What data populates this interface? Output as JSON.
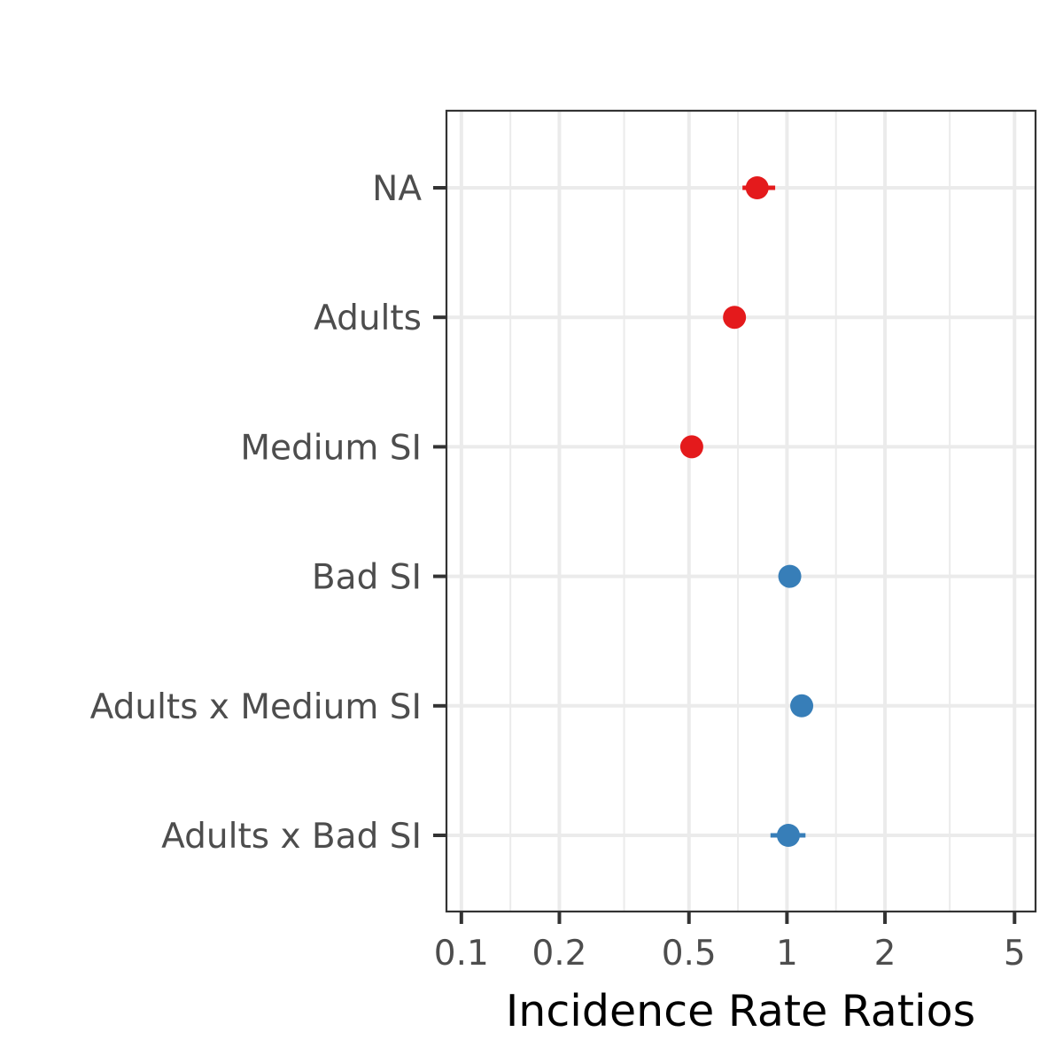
{
  "chart_data": {
    "type": "scatter",
    "title": "",
    "xlabel": "Incidence Rate Ratios",
    "ylabel": "",
    "x_scale": "log",
    "xlim": [
      0.09,
      5.8
    ],
    "x_ticks": [
      0.1,
      0.2,
      0.5,
      1,
      2,
      5
    ],
    "x_tick_labels": [
      "0.1",
      "0.2",
      "0.5",
      "1",
      "2",
      "5"
    ],
    "x_minor_grid": [
      0.1414,
      0.3162,
      0.7071,
      1.4142,
      3.1623
    ],
    "grid": true,
    "legend": "none",
    "colors": {
      "reduced": "#E41A1C",
      "increased": "#377EB8"
    },
    "categories": [
      "NA",
      "Adults",
      "Medium SI",
      "Bad SI",
      "Adults x Medium SI",
      "Adults x Bad SI"
    ],
    "points": [
      {
        "label": "NA",
        "estimate": 0.81,
        "ci_low": 0.73,
        "ci_high": 0.92,
        "color": "#E41A1C"
      },
      {
        "label": "Adults",
        "estimate": 0.69,
        "ci_low": 0.67,
        "ci_high": 0.71,
        "color": "#E41A1C"
      },
      {
        "label": "Medium SI",
        "estimate": 0.51,
        "ci_low": 0.495,
        "ci_high": 0.525,
        "color": "#E41A1C"
      },
      {
        "label": "Bad SI",
        "estimate": 1.02,
        "ci_low": 0.99,
        "ci_high": 1.05,
        "color": "#377EB8"
      },
      {
        "label": "Adults x Medium SI",
        "estimate": 1.11,
        "ci_low": 1.06,
        "ci_high": 1.16,
        "color": "#377EB8"
      },
      {
        "label": "Adults x Bad SI",
        "estimate": 1.01,
        "ci_low": 0.89,
        "ci_high": 1.14,
        "color": "#377EB8"
      }
    ]
  }
}
